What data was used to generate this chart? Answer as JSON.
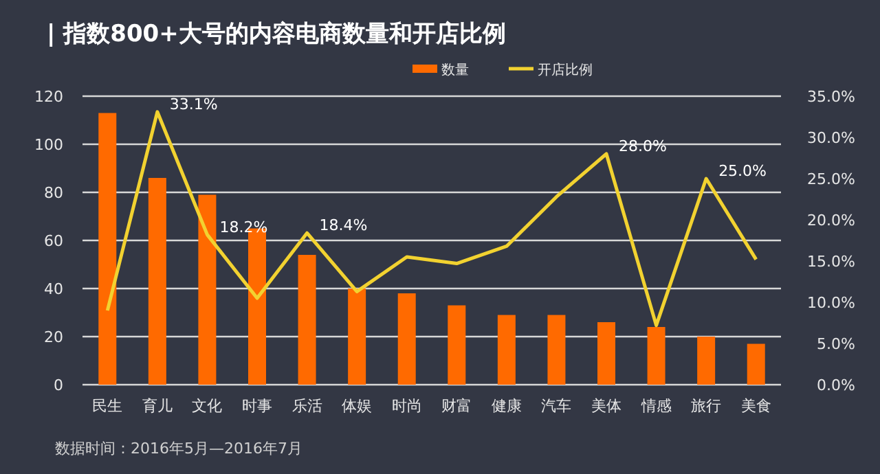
{
  "chart_data": {
    "type": "bar",
    "title": "| 指数800+大号的内容电商数量和开店比例",
    "annotations": [
      "数据时间：2016年5月—2016年7月"
    ],
    "categories": [
      "民生",
      "育儿",
      "文化",
      "时事",
      "乐活",
      "体娱",
      "时尚",
      "财富",
      "健康",
      "汽车",
      "美体",
      "情感",
      "旅行",
      "美食"
    ],
    "series": [
      {
        "name": "数量",
        "color": "#ff6a00",
        "values": [
          113,
          86,
          79,
          65,
          54,
          40,
          38,
          33,
          29,
          29,
          26,
          24,
          20,
          17
        ]
      },
      {
        "name": "开店比例",
        "type": "line",
        "axis": "y2",
        "color": "#f2d230",
        "values": [
          9.0,
          33.1,
          18.2,
          10.5,
          18.4,
          11.3,
          15.5,
          14.7,
          16.8,
          22.8,
          28.0,
          7.2,
          25.0,
          15.2
        ],
        "value_labels": [
          null,
          "33.1%",
          "18.2%",
          null,
          "18.4%",
          null,
          null,
          null,
          null,
          null,
          "28.0%",
          null,
          "25.0%",
          null
        ]
      }
    ],
    "ylim": [
      0,
      120
    ],
    "yticks": [
      0,
      20,
      40,
      60,
      80,
      100,
      120
    ],
    "y2lim": [
      0,
      35
    ],
    "y2ticks": [
      {
        "value": 0,
        "label": "0.0%"
      },
      {
        "value": 5,
        "label": "5.0%"
      },
      {
        "value": 10,
        "label": "10.0%"
      },
      {
        "value": 15,
        "label": "15.0%"
      },
      {
        "value": 20,
        "label": "20.0%"
      },
      {
        "value": 25,
        "label": "25.0%"
      },
      {
        "value": 30,
        "label": "30.0%"
      },
      {
        "value": 35,
        "label": "35.0%"
      }
    ],
    "grid": "y",
    "legend": "top"
  }
}
